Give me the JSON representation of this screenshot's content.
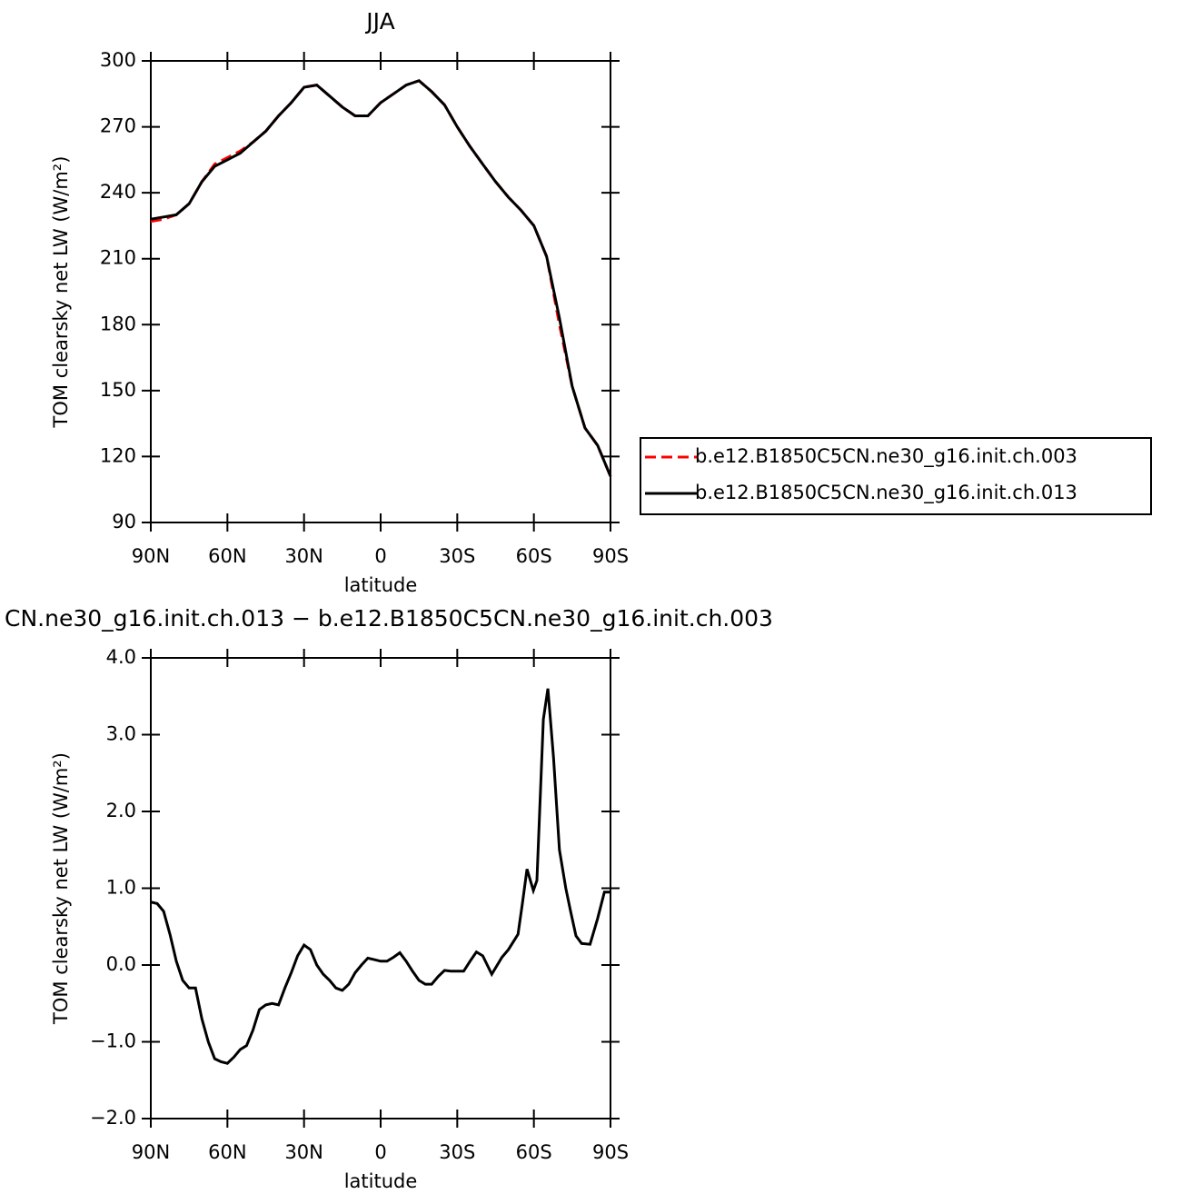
{
  "chart_data": [
    {
      "type": "line",
      "title": "JJA",
      "xlabel": "latitude",
      "ylabel": "TOM clearsky net LW (W/m²)",
      "x": [
        90,
        85,
        80,
        75,
        70,
        65,
        60,
        55,
        50,
        45,
        40,
        35,
        30,
        25,
        20,
        15,
        10,
        5,
        0,
        -5,
        -10,
        -15,
        -20,
        -25,
        -30,
        -35,
        -40,
        -45,
        -50,
        -55,
        -60,
        -65,
        -70,
        -75,
        -80,
        -85,
        -90
      ],
      "xlim": [
        90,
        -90
      ],
      "xticks": [
        {
          "value": 90,
          "label": "90N"
        },
        {
          "value": 60,
          "label": "60N"
        },
        {
          "value": 30,
          "label": "30N"
        },
        0,
        {
          "value": -30,
          "label": "30S"
        },
        {
          "value": -60,
          "label": "60S"
        },
        {
          "value": -90,
          "label": "90S"
        }
      ],
      "ylim": [
        90,
        300
      ],
      "yticks": [
        90,
        120,
        150,
        180,
        210,
        240,
        270,
        300
      ],
      "legend": "right",
      "series": [
        {
          "name": "b.e12.B1850C5CN.ne30_g16.init.ch.003",
          "color": "#ff0000",
          "dash": true,
          "values": [
            227,
            228,
            230,
            235,
            245,
            253,
            256,
            259,
            263,
            268,
            275,
            281,
            288,
            289,
            284,
            279,
            275,
            275,
            281,
            285,
            289,
            291,
            286,
            280,
            270,
            261,
            253,
            245,
            238,
            232,
            225,
            211,
            180,
            152,
            133,
            125,
            111
          ]
        },
        {
          "name": "b.e12.B1850C5CN.ne30_g16.init.ch.013",
          "color": "#000000",
          "dash": false,
          "values": [
            228,
            229,
            230,
            235,
            245,
            252,
            255,
            258,
            263,
            268,
            275,
            281,
            288,
            289,
            284,
            279,
            275,
            275,
            281,
            285,
            289,
            291,
            286,
            280,
            270,
            261,
            253,
            245,
            238,
            232,
            225,
            211,
            183,
            152,
            133,
            125,
            111
          ]
        }
      ]
    },
    {
      "type": "line",
      "title": "CN.ne30_g16.init.ch.013 − b.e12.B1850C5CN.ne30_g16.init.ch.003",
      "xlabel": "latitude",
      "ylabel": "TOM clearsky net LW (W/m²)",
      "x": [
        90,
        87.5,
        85,
        82.5,
        80,
        77.5,
        75,
        72.5,
        70,
        67.5,
        65,
        62.5,
        60,
        57.5,
        55,
        52.5,
        50,
        47.5,
        45,
        42.5,
        40,
        37.5,
        35,
        32.5,
        30,
        27.5,
        25,
        22.5,
        20,
        17.5,
        15,
        12.5,
        10,
        7.5,
        5,
        2.5,
        0,
        -2.5,
        -5,
        -7.5,
        -10,
        -12.5,
        -15,
        -17.5,
        -20,
        -22.5,
        -25,
        -27.5,
        -30,
        -32.5,
        -35,
        -37.5,
        -40,
        -43.5,
        -47.5,
        -50,
        -53.8,
        -55.5,
        -57.3,
        -59.8,
        -61.2,
        -63.7,
        -65.5,
        -67.7,
        -70,
        -72.5,
        -74.4,
        -76.5,
        -78.7,
        -82,
        -84.9,
        -87.6,
        -90
      ],
      "xlim": [
        90,
        -90
      ],
      "xticks": [
        {
          "value": 90,
          "label": "90N"
        },
        {
          "value": 60,
          "label": "60N"
        },
        {
          "value": 30,
          "label": "30N"
        },
        0,
        {
          "value": -30,
          "label": "30S"
        },
        {
          "value": -60,
          "label": "60S"
        },
        {
          "value": -90,
          "label": "90S"
        }
      ],
      "ylim": [
        -2,
        4
      ],
      "yticks": [
        {
          "value": -2,
          "label": "−2.0"
        },
        {
          "value": -1,
          "label": "−1.0"
        },
        {
          "value": 0,
          "label": "0.0"
        },
        {
          "value": 1,
          "label": "1.0"
        },
        {
          "value": 2,
          "label": "2.0"
        },
        {
          "value": 3,
          "label": "3.0"
        },
        {
          "value": 4,
          "label": "4.0"
        }
      ],
      "series": [
        {
          "color": "#000000",
          "dash": false,
          "values": [
            0.82,
            0.8,
            0.7,
            0.4,
            0.05,
            -0.2,
            -0.3,
            -0.3,
            -0.7,
            -1.0,
            -1.22,
            -1.26,
            -1.28,
            -1.2,
            -1.1,
            -1.05,
            -0.85,
            -0.58,
            -0.52,
            -0.5,
            -0.52,
            -0.3,
            -0.1,
            0.12,
            0.26,
            0.2,
            0.0,
            -0.12,
            -0.2,
            -0.3,
            -0.33,
            -0.25,
            -0.1,
            0.0,
            0.09,
            0.07,
            0.05,
            0.05,
            0.1,
            0.16,
            0.05,
            -0.08,
            -0.2,
            -0.25,
            -0.25,
            -0.15,
            -0.07,
            -0.08,
            -0.08,
            -0.08,
            0.05,
            0.17,
            0.12,
            -0.12,
            0.1,
            0.2,
            0.4,
            0.8,
            1.25,
            0.97,
            1.1,
            3.2,
            3.6,
            2.7,
            1.5,
            1.0,
            0.7,
            0.38,
            0.28,
            0.27,
            0.6,
            0.95,
            0.95
          ]
        }
      ]
    }
  ]
}
